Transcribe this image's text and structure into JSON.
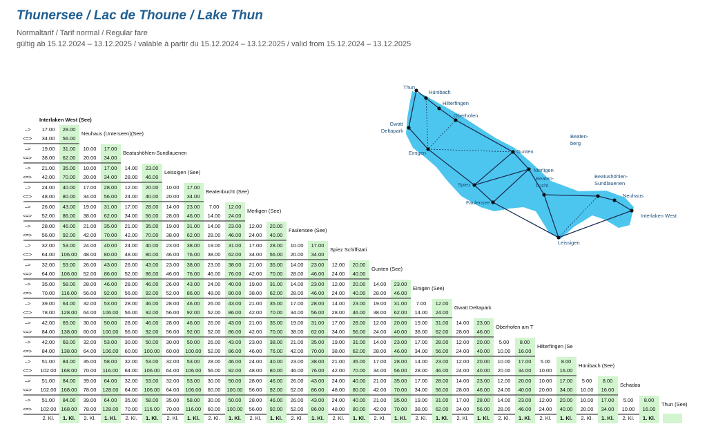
{
  "header": {
    "title": "Thunersee / Lac de Thoune / Lake Thun",
    "subtitle": "Normaltarif / Tarif normal / Regular fare",
    "validity": "gültig ab 15.12.2024 – 13.12.2025 / valable à partir du 15.12.2024 – 13.12.2025 / valid from 15.12.2024 – 13.12.2025"
  },
  "table": {
    "origin": "Interlaken West (See)",
    "directions": [
      "–>",
      "<=>"
    ],
    "classes": [
      "2. Kl.",
      "1. Kl."
    ],
    "rows": [
      {
        "station": "Neuhaus (Unterseen)(See)",
        "oneway": [
          [
            "17.00",
            "28.00"
          ]
        ],
        "roundtrip": [
          [
            "34.00",
            "56.00"
          ]
        ]
      },
      {
        "station": "Beatushöhlen-Sundlauenen",
        "oneway": [
          [
            "19.00",
            "31.00"
          ],
          [
            "10.00",
            "17.00"
          ]
        ],
        "roundtrip": [
          [
            "38.00",
            "62.00"
          ],
          [
            "20.00",
            "34.00"
          ]
        ]
      },
      {
        "station": "Leissigen (See)",
        "oneway": [
          [
            "21.00",
            "35.00"
          ],
          [
            "10.00",
            "17.00"
          ],
          [
            "14.00",
            "23.00"
          ]
        ],
        "roundtrip": [
          [
            "42.00",
            "70.00"
          ],
          [
            "20.00",
            "34.00"
          ],
          [
            "28.00",
            "46.00"
          ]
        ]
      },
      {
        "station": "Beatenbucht (See)",
        "oneway": [
          [
            "24.00",
            "40.00"
          ],
          [
            "17.00",
            "28.00"
          ],
          [
            "12.00",
            "20.00"
          ],
          [
            "10.00",
            "17.00"
          ]
        ],
        "roundtrip": [
          [
            "48.00",
            "80.00"
          ],
          [
            "34.00",
            "56.00"
          ],
          [
            "24.00",
            "40.00"
          ],
          [
            "20.00",
            "34.00"
          ]
        ]
      },
      {
        "station": "Merligen (See)",
        "oneway": [
          [
            "26.00",
            "43.00"
          ],
          [
            "19.00",
            "31.00"
          ],
          [
            "17.00",
            "28.00"
          ],
          [
            "14.00",
            "23.00"
          ],
          [
            "7.00",
            "12.00"
          ]
        ],
        "roundtrip": [
          [
            "52.00",
            "86.00"
          ],
          [
            "38.00",
            "62.00"
          ],
          [
            "34.00",
            "56.00"
          ],
          [
            "28.00",
            "46.00"
          ],
          [
            "14.00",
            "24.00"
          ]
        ]
      },
      {
        "station": "Faulensee (See)",
        "oneway": [
          [
            "28.00",
            "46.00"
          ],
          [
            "21.00",
            "35.00"
          ],
          [
            "21.00",
            "35.00"
          ],
          [
            "19.00",
            "31.00"
          ],
          [
            "14.00",
            "23.00"
          ],
          [
            "12.00",
            "20.00"
          ]
        ],
        "roundtrip": [
          [
            "56.00",
            "92.00"
          ],
          [
            "42.00",
            "70.00"
          ],
          [
            "42.00",
            "70.00"
          ],
          [
            "38.00",
            "62.00"
          ],
          [
            "28.00",
            "46.00"
          ],
          [
            "24.00",
            "40.00"
          ]
        ]
      },
      {
        "station": "Spiez Schiffstati",
        "oneway": [
          [
            "32.00",
            "53.00"
          ],
          [
            "24.00",
            "40.00"
          ],
          [
            "24.00",
            "40.00"
          ],
          [
            "23.00",
            "38.00"
          ],
          [
            "19.00",
            "31.00"
          ],
          [
            "17.00",
            "28.00"
          ],
          [
            "10.00",
            "17.00"
          ]
        ],
        "roundtrip": [
          [
            "64.00",
            "106.00"
          ],
          [
            "48.00",
            "80.00"
          ],
          [
            "48.00",
            "80.00"
          ],
          [
            "46.00",
            "76.00"
          ],
          [
            "38.00",
            "62.00"
          ],
          [
            "34.00",
            "56.00"
          ],
          [
            "20.00",
            "34.00"
          ]
        ]
      },
      {
        "station": "Gunten (See)",
        "oneway": [
          [
            "32.00",
            "53.00"
          ],
          [
            "26.00",
            "43.00"
          ],
          [
            "26.00",
            "43.00"
          ],
          [
            "23.00",
            "38.00"
          ],
          [
            "23.00",
            "38.00"
          ],
          [
            "21.00",
            "35.00"
          ],
          [
            "14.00",
            "23.00"
          ],
          [
            "12.00",
            "20.00"
          ]
        ],
        "roundtrip": [
          [
            "64.00",
            "106.00"
          ],
          [
            "52.00",
            "86.00"
          ],
          [
            "52.00",
            "86.00"
          ],
          [
            "46.00",
            "76.00"
          ],
          [
            "46.00",
            "76.00"
          ],
          [
            "42.00",
            "70.00"
          ],
          [
            "28.00",
            "46.00"
          ],
          [
            "24.00",
            "40.00"
          ]
        ]
      },
      {
        "station": "Einigen (See)",
        "oneway": [
          [
            "35.00",
            "58.00"
          ],
          [
            "28.00",
            "46.00"
          ],
          [
            "28.00",
            "46.00"
          ],
          [
            "26.00",
            "43.00"
          ],
          [
            "24.00",
            "40.00"
          ],
          [
            "19.00",
            "31.00"
          ],
          [
            "14.00",
            "23.00"
          ],
          [
            "12.00",
            "20.00"
          ],
          [
            "14.00",
            "23.00"
          ]
        ],
        "roundtrip": [
          [
            "70.00",
            "116.00"
          ],
          [
            "56.00",
            "92.00"
          ],
          [
            "56.00",
            "92.00"
          ],
          [
            "52.00",
            "86.00"
          ],
          [
            "48.00",
            "80.00"
          ],
          [
            "38.00",
            "62.00"
          ],
          [
            "28.00",
            "46.00"
          ],
          [
            "24.00",
            "40.00"
          ],
          [
            "28.00",
            "46.00"
          ]
        ]
      },
      {
        "station": "Gwatt Deltapark",
        "oneway": [
          [
            "39.00",
            "64.00"
          ],
          [
            "32.00",
            "53.00"
          ],
          [
            "28.00",
            "46.00"
          ],
          [
            "28.00",
            "46.00"
          ],
          [
            "26.00",
            "43.00"
          ],
          [
            "21.00",
            "35.00"
          ],
          [
            "17.00",
            "28.00"
          ],
          [
            "14.00",
            "23.00"
          ],
          [
            "19.00",
            "31.00"
          ],
          [
            "7.00",
            "12.00"
          ]
        ],
        "roundtrip": [
          [
            "78.00",
            "128.00"
          ],
          [
            "64.00",
            "106.00"
          ],
          [
            "56.00",
            "92.00"
          ],
          [
            "56.00",
            "92.00"
          ],
          [
            "52.00",
            "86.00"
          ],
          [
            "42.00",
            "70.00"
          ],
          [
            "34.00",
            "56.00"
          ],
          [
            "28.00",
            "46.00"
          ],
          [
            "38.00",
            "62.00"
          ],
          [
            "14.00",
            "24.00"
          ]
        ]
      },
      {
        "station": "Oberhofen am T",
        "oneway": [
          [
            "42.00",
            "69.00"
          ],
          [
            "30.00",
            "50.00"
          ],
          [
            "28.00",
            "46.00"
          ],
          [
            "28.00",
            "46.00"
          ],
          [
            "26.00",
            "43.00"
          ],
          [
            "21.00",
            "35.00"
          ],
          [
            "19.00",
            "31.00"
          ],
          [
            "17.00",
            "28.00"
          ],
          [
            "12.00",
            "20.00"
          ],
          [
            "19.00",
            "31.00"
          ],
          [
            "14.00",
            "23.00"
          ]
        ],
        "roundtrip": [
          [
            "84.00",
            "138.00"
          ],
          [
            "60.00",
            "100.00"
          ],
          [
            "56.00",
            "92.00"
          ],
          [
            "56.00",
            "92.00"
          ],
          [
            "52.00",
            "86.00"
          ],
          [
            "42.00",
            "70.00"
          ],
          [
            "38.00",
            "62.00"
          ],
          [
            "34.00",
            "56.00"
          ],
          [
            "24.00",
            "40.00"
          ],
          [
            "38.00",
            "62.00"
          ],
          [
            "28.00",
            "46.00"
          ]
        ]
      },
      {
        "station": "Hilterfingen (Se",
        "oneway": [
          [
            "42.00",
            "69.00"
          ],
          [
            "32.00",
            "53.00"
          ],
          [
            "30.00",
            "50.00"
          ],
          [
            "30.00",
            "50.00"
          ],
          [
            "26.00",
            "43.00"
          ],
          [
            "23.00",
            "38.00"
          ],
          [
            "21.00",
            "35.00"
          ],
          [
            "19.00",
            "31.00"
          ],
          [
            "14.00",
            "23.00"
          ],
          [
            "17.00",
            "28.00"
          ],
          [
            "12.00",
            "20.00"
          ],
          [
            "5.00",
            "8.00"
          ]
        ],
        "roundtrip": [
          [
            "84.00",
            "138.00"
          ],
          [
            "64.00",
            "106.00"
          ],
          [
            "60.00",
            "100.00"
          ],
          [
            "60.00",
            "100.00"
          ],
          [
            "52.00",
            "86.00"
          ],
          [
            "46.00",
            "76.00"
          ],
          [
            "42.00",
            "70.00"
          ],
          [
            "38.00",
            "62.00"
          ],
          [
            "28.00",
            "46.00"
          ],
          [
            "34.00",
            "56.00"
          ],
          [
            "24.00",
            "40.00"
          ],
          [
            "10.00",
            "16.00"
          ]
        ]
      },
      {
        "station": "Hünibach (See)",
        "oneway": [
          [
            "51.00",
            "84.00"
          ],
          [
            "35.00",
            "58.00"
          ],
          [
            "32.00",
            "53.00"
          ],
          [
            "32.00",
            "53.00"
          ],
          [
            "28.00",
            "46.00"
          ],
          [
            "24.00",
            "40.00"
          ],
          [
            "23.00",
            "38.00"
          ],
          [
            "21.00",
            "35.00"
          ],
          [
            "17.00",
            "28.00"
          ],
          [
            "14.00",
            "23.00"
          ],
          [
            "12.00",
            "20.00"
          ],
          [
            "10.00",
            "17.00"
          ],
          [
            "5.00",
            "8.00"
          ]
        ],
        "roundtrip": [
          [
            "102.00",
            "168.00"
          ],
          [
            "70.00",
            "116.00"
          ],
          [
            "64.00",
            "106.00"
          ],
          [
            "64.00",
            "106.00"
          ],
          [
            "56.00",
            "92.00"
          ],
          [
            "48.00",
            "80.00"
          ],
          [
            "46.00",
            "76.00"
          ],
          [
            "42.00",
            "70.00"
          ],
          [
            "34.00",
            "56.00"
          ],
          [
            "28.00",
            "46.00"
          ],
          [
            "24.00",
            "40.00"
          ],
          [
            "20.00",
            "34.00"
          ],
          [
            "10.00",
            "16.00"
          ]
        ]
      },
      {
        "station": "Schadau",
        "oneway": [
          [
            "51.00",
            "84.00"
          ],
          [
            "39.00",
            "64.00"
          ],
          [
            "32.00",
            "53.00"
          ],
          [
            "32.00",
            "53.00"
          ],
          [
            "30.00",
            "50.00"
          ],
          [
            "28.00",
            "46.00"
          ],
          [
            "26.00",
            "43.00"
          ],
          [
            "24.00",
            "40.00"
          ],
          [
            "21.00",
            "35.00"
          ],
          [
            "17.00",
            "28.00"
          ],
          [
            "14.00",
            "23.00"
          ],
          [
            "12.00",
            "20.00"
          ],
          [
            "10.00",
            "17.00"
          ],
          [
            "5.00",
            "8.00"
          ]
        ],
        "roundtrip": [
          [
            "102.00",
            "168.00"
          ],
          [
            "78.00",
            "128.00"
          ],
          [
            "64.00",
            "106.00"
          ],
          [
            "64.00",
            "106.00"
          ],
          [
            "60.00",
            "100.00"
          ],
          [
            "56.00",
            "92.00"
          ],
          [
            "52.00",
            "86.00"
          ],
          [
            "48.00",
            "80.00"
          ],
          [
            "42.00",
            "70.00"
          ],
          [
            "34.00",
            "56.00"
          ],
          [
            "28.00",
            "46.00"
          ],
          [
            "24.00",
            "40.00"
          ],
          [
            "20.00",
            "34.00"
          ],
          [
            "10.00",
            "16.00"
          ]
        ]
      },
      {
        "station": "Thun (See)",
        "oneway": [
          [
            "51.00",
            "84.00"
          ],
          [
            "39.00",
            "64.00"
          ],
          [
            "35.00",
            "58.00"
          ],
          [
            "35.00",
            "58.00"
          ],
          [
            "30.00",
            "50.00"
          ],
          [
            "28.00",
            "46.00"
          ],
          [
            "26.00",
            "43.00"
          ],
          [
            "24.00",
            "40.00"
          ],
          [
            "21.00",
            "35.00"
          ],
          [
            "19.00",
            "31.00"
          ],
          [
            "17.00",
            "28.00"
          ],
          [
            "14.00",
            "23.00"
          ],
          [
            "12.00",
            "20.00"
          ],
          [
            "10.00",
            "17.00"
          ],
          [
            "5.00",
            "8.00"
          ]
        ],
        "roundtrip": [
          [
            "102.00",
            "168.00"
          ],
          [
            "78.00",
            "128.00"
          ],
          [
            "70.00",
            "116.00"
          ],
          [
            "70.00",
            "116.00"
          ],
          [
            "60.00",
            "100.00"
          ],
          [
            "56.00",
            "92.00"
          ],
          [
            "52.00",
            "86.00"
          ],
          [
            "48.00",
            "80.00"
          ],
          [
            "42.00",
            "70.00"
          ],
          [
            "38.00",
            "62.00"
          ],
          [
            "34.00",
            "56.00"
          ],
          [
            "28.00",
            "46.00"
          ],
          [
            "24.00",
            "40.00"
          ],
          [
            "20.00",
            "34.00"
          ],
          [
            "10.00",
            "16.00"
          ]
        ]
      }
    ]
  },
  "map": {
    "labels": [
      [
        "Thun"
      ],
      [
        "Hünibach"
      ],
      [
        "Hilterfingen"
      ],
      [
        "Oberhofen"
      ],
      [
        "Gwatt",
        "Deltapark"
      ],
      [
        "Einigen"
      ],
      [
        "Gunten"
      ],
      [
        "Beaten-",
        "berg"
      ],
      [
        "Merligen"
      ],
      [
        "Beaten-",
        "bucht"
      ],
      [
        "Spiez"
      ],
      [
        "Faulensee"
      ],
      [
        "Leissigen"
      ],
      [
        "Beatushöhlen-",
        "Sundlauenen"
      ],
      [
        "Neuhaus"
      ],
      [
        "Interlaken West"
      ]
    ]
  }
}
